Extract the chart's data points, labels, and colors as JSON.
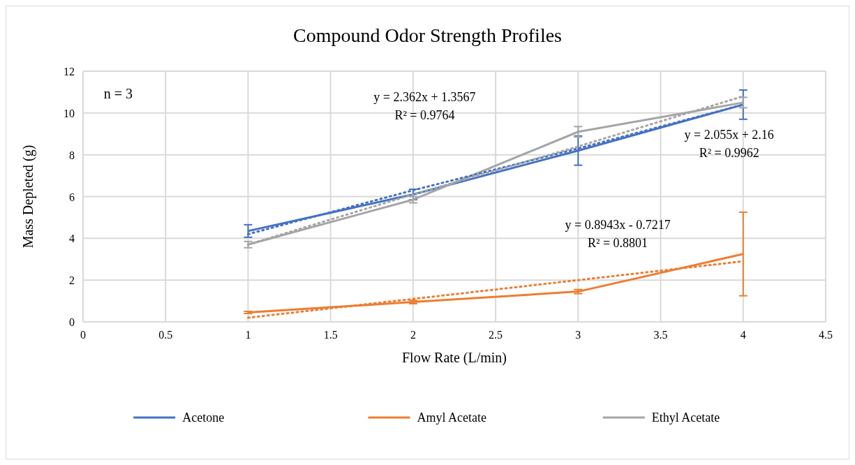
{
  "chart_data": {
    "type": "line",
    "title": "Compound Odor Strength Profiles",
    "xlabel": "Flow Rate (L/min)",
    "ylabel": "Mass Depleted (g)",
    "x": [
      1,
      2,
      3,
      4
    ],
    "xlim": [
      0,
      4.5
    ],
    "xticks": [
      0,
      0.5,
      1,
      1.5,
      2,
      2.5,
      3,
      3.5,
      4,
      4.5
    ],
    "ylim": [
      0,
      12
    ],
    "yticks": [
      0,
      2,
      4,
      6,
      8,
      10,
      12
    ],
    "grid": true,
    "legend": "bottom",
    "marker": "none",
    "line_style": "solid",
    "series": [
      {
        "name": "Acetone",
        "color": "#4472c4",
        "values": [
          4.35,
          6.1,
          8.2,
          10.4
        ],
        "errors": [
          0.3,
          0.25,
          0.7,
          0.7
        ]
      },
      {
        "name": "Amyl Acetate",
        "color": "#ed7d31",
        "values": [
          0.45,
          0.95,
          1.45,
          3.25
        ],
        "errors": [
          0.05,
          0.08,
          0.1,
          2.0
        ]
      },
      {
        "name": "Ethyl Acetate",
        "color": "#a5a5a5",
        "values": [
          3.7,
          5.85,
          9.1,
          10.5
        ],
        "errors": [
          0.15,
          0.15,
          0.25,
          0.25
        ]
      },
      {
        "type": "line",
        "line_style": "dotted",
        "color": "#4472c4",
        "values": [
          4.2,
          6.3,
          8.3,
          10.4
        ]
      },
      {
        "type": "line",
        "line_style": "dotted",
        "color": "#ed7d31",
        "values": [
          0.2,
          1.1,
          2.0,
          2.9
        ]
      },
      {
        "type": "line",
        "line_style": "dotted",
        "color": "#a5a5a5",
        "values": [
          3.7,
          6.1,
          8.4,
          10.8
        ]
      }
    ],
    "annotations": [
      "n = 3",
      "y = 2.362x + 1.3567\nR² = 0.9764",
      "y = 2.055x + 2.16\nR² = 0.9962",
      "y = 0.8943x - 0.7217\nR² = 0.8801"
    ]
  }
}
